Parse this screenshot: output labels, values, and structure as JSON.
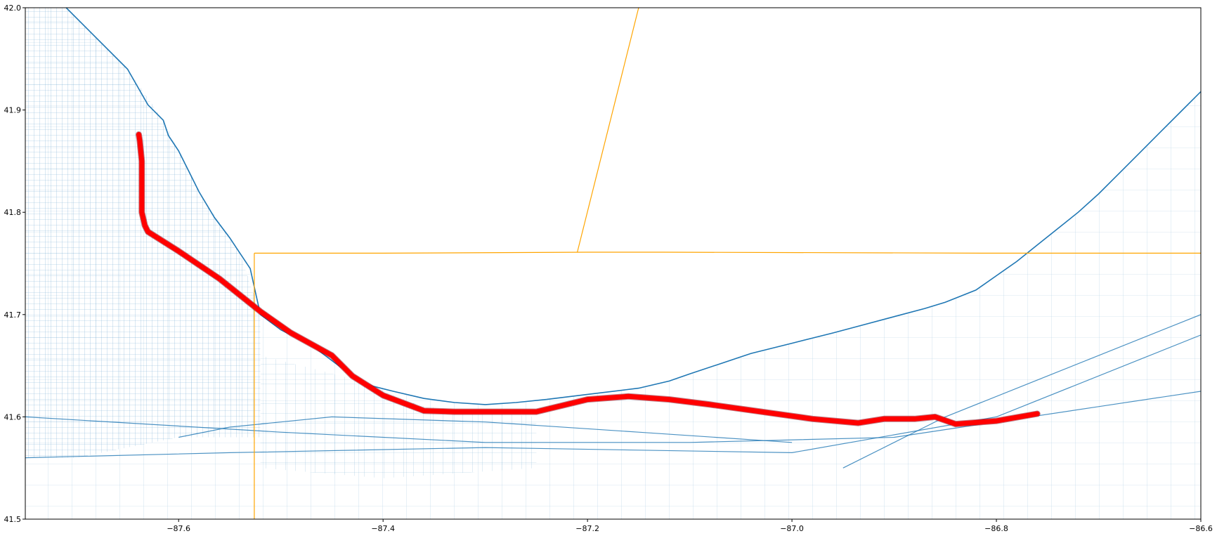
{
  "chart_data": {
    "type": "line",
    "title": "",
    "xlabel": "",
    "ylabel": "",
    "xlim": [
      -87.75,
      -86.6
    ],
    "ylim": [
      41.5,
      42.0
    ],
    "grid": false,
    "legend": "none",
    "x_ticks": [
      {
        "value": -87.6,
        "label": "−87.6"
      },
      {
        "value": -87.4,
        "label": "−87.4"
      },
      {
        "value": -87.2,
        "label": "−87.2"
      },
      {
        "value": -87.0,
        "label": "−87.0"
      },
      {
        "value": -86.8,
        "label": "−86.8"
      },
      {
        "value": -86.6,
        "label": "−86.6"
      }
    ],
    "y_ticks": [
      {
        "value": 41.5,
        "label": "41.5"
      },
      {
        "value": 41.6,
        "label": "41.6"
      },
      {
        "value": 41.7,
        "label": "41.7"
      },
      {
        "value": 41.8,
        "label": "41.8"
      },
      {
        "value": 41.9,
        "label": "41.9"
      },
      {
        "value": 42.0,
        "label": "42.0"
      }
    ],
    "colors": {
      "roads": "#1f77b4",
      "state_border": "#ffa500",
      "route": "#ff0000"
    },
    "route": {
      "x": [
        -87.639,
        -87.638,
        -87.636,
        -87.636,
        -87.636,
        -87.633,
        -87.63,
        -87.6,
        -87.56,
        -87.52,
        -87.49,
        -87.45,
        -87.43,
        -87.4,
        -87.36,
        -87.33,
        -87.3,
        -87.25,
        -87.2,
        -87.16,
        -87.12,
        -87.08,
        -87.03,
        -86.98,
        -86.935,
        -86.91,
        -86.88,
        -86.86,
        -86.84,
        -86.8,
        -86.76
      ],
      "y": [
        41.876,
        41.87,
        41.85,
        41.82,
        41.8,
        41.787,
        41.781,
        41.762,
        41.735,
        41.703,
        41.682,
        41.66,
        41.64,
        41.621,
        41.606,
        41.605,
        41.605,
        41.605,
        41.617,
        41.62,
        41.617,
        41.612,
        41.605,
        41.598,
        41.594,
        41.598,
        41.598,
        41.6,
        41.593,
        41.596,
        41.603
      ]
    },
    "state_borders": [
      {
        "x": [
          -87.526,
          -87.526
        ],
        "y": [
          41.5,
          41.76
        ]
      },
      {
        "x": [
          -87.526,
          -87.4,
          -87.2,
          -87.125,
          -86.8,
          -86.6
        ],
        "y": [
          41.76,
          41.76,
          41.761,
          41.761,
          41.76,
          41.76
        ]
      },
      {
        "x": [
          -87.21,
          -87.15
        ],
        "y": [
          41.761,
          42.0
        ]
      }
    ],
    "shoreline": {
      "x": [
        -87.71,
        -87.68,
        -87.65,
        -87.63,
        -87.615,
        -87.61,
        -87.6,
        -87.59,
        -87.58,
        -87.565,
        -87.55,
        -87.54,
        -87.53,
        -87.52,
        -87.5,
        -87.47,
        -87.45,
        -87.43,
        -87.41,
        -87.39,
        -87.36,
        -87.33,
        -87.3,
        -87.27,
        -87.24,
        -87.2,
        -87.15,
        -87.12,
        -87.1,
        -87.07,
        -87.04,
        -87.0,
        -86.96,
        -86.93,
        -86.9,
        -86.87,
        -86.85,
        -86.82,
        -86.8,
        -86.78,
        -86.76,
        -86.74,
        -86.72,
        -86.7,
        -86.68,
        -86.66,
        -86.64,
        -86.62,
        -86.6
      ],
      "y": [
        42.0,
        41.97,
        41.94,
        41.905,
        41.89,
        41.875,
        41.86,
        41.84,
        41.82,
        41.795,
        41.775,
        41.76,
        41.745,
        41.7,
        41.685,
        41.67,
        41.655,
        41.64,
        41.63,
        41.625,
        41.618,
        41.614,
        41.612,
        41.614,
        41.617,
        41.622,
        41.628,
        41.635,
        41.642,
        41.652,
        41.662,
        41.672,
        41.682,
        41.69,
        41.698,
        41.706,
        41.712,
        41.724,
        41.738,
        41.752,
        41.768,
        41.784,
        41.8,
        41.818,
        41.838,
        41.858,
        41.878,
        41.898,
        41.918
      ]
    }
  }
}
